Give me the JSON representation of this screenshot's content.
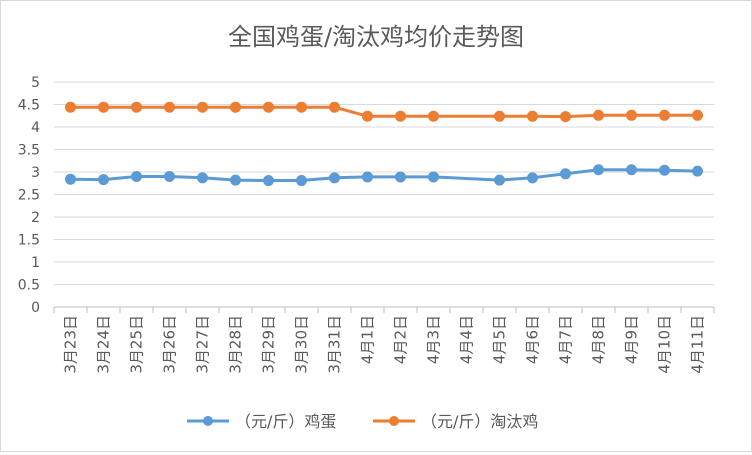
{
  "chart_data": {
    "type": "line",
    "title": "全国鸡蛋/淘汰鸡均价走势图",
    "categories": [
      "3月23日",
      "3月24日",
      "3月25日",
      "3月26日",
      "3月27日",
      "3月28日",
      "3月29日",
      "3月30日",
      "3月31日",
      "4月1日",
      "4月2日",
      "4月3日",
      "4月4日",
      "4月5日",
      "4月6日",
      "4月7日",
      "4月8日",
      "4月9日",
      "4月10日",
      "4月11日"
    ],
    "yticks": [
      "0",
      "0.5",
      "1",
      "1.5",
      "2",
      "2.5",
      "3",
      "3.5",
      "4",
      "4.5",
      "5"
    ],
    "ylim": [
      0,
      5
    ],
    "grid": true,
    "legend_position": "bottom",
    "series": [
      {
        "name": "（元/斤）鸡蛋",
        "color": "#5b9bd5",
        "values": [
          2.84,
          2.83,
          2.9,
          2.9,
          2.87,
          2.82,
          2.81,
          2.81,
          2.87,
          2.89,
          2.89,
          2.89,
          null,
          2.82,
          2.87,
          2.96,
          3.05,
          3.05,
          3.04,
          3.02
        ]
      },
      {
        "name": "（元/斤）淘汰鸡",
        "color": "#ed7d31",
        "values": [
          4.44,
          4.44,
          4.44,
          4.44,
          4.44,
          4.44,
          4.44,
          4.44,
          4.44,
          4.24,
          4.24,
          4.24,
          null,
          4.24,
          4.24,
          4.23,
          4.26,
          4.26,
          4.26,
          4.26
        ]
      }
    ]
  }
}
